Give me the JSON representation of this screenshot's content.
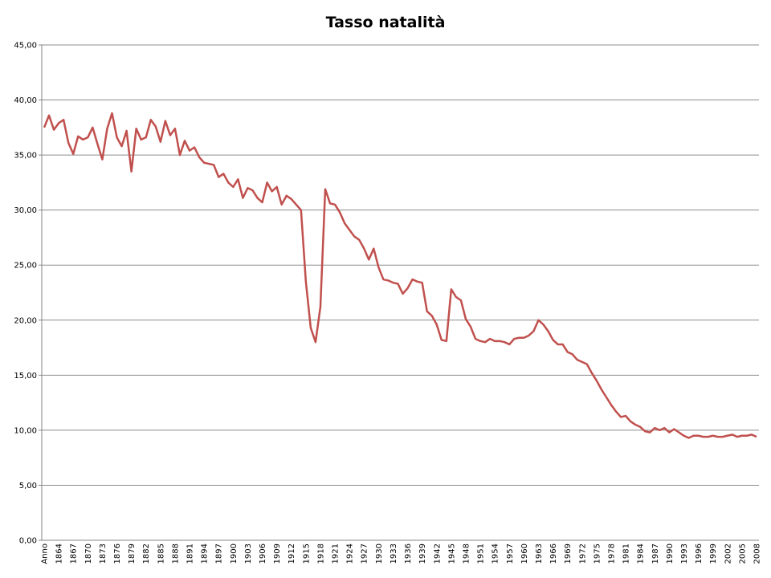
{
  "chart_data": {
    "type": "line",
    "title": "Tasso natalità",
    "categories": [
      "Anno",
      null,
      null,
      "1864",
      null,
      null,
      "1867",
      null,
      null,
      "1870",
      null,
      null,
      "1873",
      null,
      null,
      "1876",
      null,
      null,
      "1879",
      null,
      null,
      "1882",
      null,
      null,
      "1885",
      null,
      null,
      "1888",
      null,
      null,
      "1891",
      null,
      null,
      "1894",
      null,
      null,
      "1897",
      null,
      null,
      "1900",
      null,
      null,
      "1903",
      null,
      null,
      "1906",
      null,
      null,
      "1909",
      null,
      null,
      "1912",
      null,
      null,
      "1915",
      null,
      null,
      "1918",
      null,
      null,
      "1921",
      null,
      null,
      "1924",
      null,
      null,
      "1927",
      null,
      null,
      "1930",
      null,
      null,
      "1933",
      null,
      null,
      "1936",
      null,
      null,
      "1939",
      null,
      null,
      "1942",
      null,
      null,
      "1945",
      null,
      null,
      "1948",
      null,
      null,
      "1951",
      null,
      null,
      "1954",
      null,
      null,
      "1957",
      null,
      null,
      "1960",
      null,
      null,
      "1963",
      null,
      null,
      "1966",
      null,
      null,
      "1969",
      null,
      null,
      "1972",
      null,
      null,
      "1975",
      null,
      null,
      "1978",
      null,
      null,
      "1981",
      null,
      null,
      "1984",
      null,
      null,
      "1987",
      null,
      null,
      "1990",
      null,
      null,
      "1993",
      null,
      null,
      "1996",
      null,
      null,
      "1999",
      null,
      null,
      "2002",
      null,
      null,
      "2005",
      null,
      null,
      "2008"
    ],
    "series": [
      {
        "color": "#c0504d",
        "values": [
          37.5,
          38.6,
          37.3,
          37.9,
          38.2,
          36.1,
          35.1,
          36.7,
          36.4,
          36.6,
          37.5,
          36.0,
          34.6,
          37.4,
          38.8,
          36.6,
          35.8,
          37.2,
          33.5,
          37.4,
          36.4,
          36.6,
          38.2,
          37.6,
          36.2,
          38.1,
          36.8,
          37.4,
          35.0,
          36.3,
          35.4,
          35.7,
          34.8,
          34.3,
          34.2,
          34.1,
          33.0,
          33.3,
          32.5,
          32.1,
          32.8,
          31.1,
          32.0,
          31.8,
          31.1,
          30.7,
          32.5,
          31.7,
          32.1,
          30.5,
          31.3,
          31.0,
          30.5,
          30.0,
          23.5,
          19.3,
          18.0,
          21.2,
          31.9,
          30.6,
          30.5,
          29.8,
          28.8,
          28.2,
          27.6,
          27.3,
          26.5,
          25.5,
          26.5,
          24.8,
          23.7,
          23.6,
          23.4,
          23.3,
          22.4,
          22.9,
          23.7,
          23.5,
          23.4,
          20.8,
          20.4,
          19.6,
          18.2,
          18.1,
          22.8,
          22.1,
          21.8,
          20.1,
          19.4,
          18.3,
          18.1,
          18.0,
          18.3,
          18.1,
          18.1,
          18.0,
          17.8,
          18.3,
          18.4,
          18.4,
          18.6,
          19.0,
          20.0,
          19.6,
          19.0,
          18.2,
          17.8,
          17.8,
          17.1,
          16.9,
          16.4,
          16.2,
          16.0,
          15.2,
          14.5,
          13.7,
          13.0,
          12.3,
          11.7,
          11.2,
          11.3,
          10.8,
          10.5,
          10.3,
          9.9,
          9.8,
          10.2,
          10.0,
          10.2,
          9.8,
          10.1,
          9.8,
          9.5,
          9.3,
          9.5,
          9.5,
          9.4,
          9.4,
          9.5,
          9.4,
          9.4,
          9.5,
          9.6,
          9.4,
          9.5,
          9.5,
          9.6,
          9.4
        ]
      }
    ],
    "ylim": [
      0,
      45
    ],
    "yticks": [
      {
        "value": 0,
        "label": "0,00"
      },
      {
        "value": 5,
        "label": "5,00"
      },
      {
        "value": 10,
        "label": "10,00"
      },
      {
        "value": 15,
        "label": "15,00"
      },
      {
        "value": 20,
        "label": "20,00"
      },
      {
        "value": 25,
        "label": "25,00"
      },
      {
        "value": 30,
        "label": "30,00"
      },
      {
        "value": 35,
        "label": "35,00"
      },
      {
        "value": 40,
        "label": "40,00"
      },
      {
        "value": 45,
        "label": "45,00"
      }
    ],
    "grid": true
  }
}
